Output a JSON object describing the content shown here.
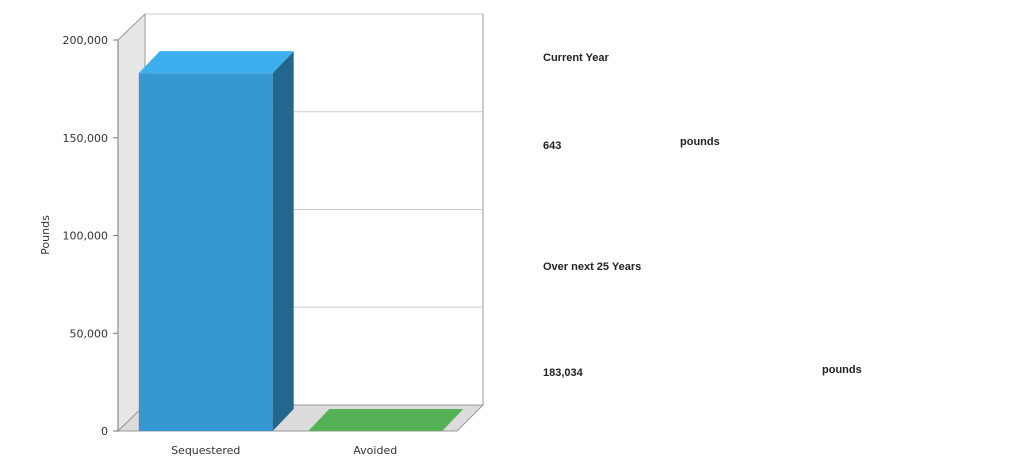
{
  "chart_data": {
    "type": "bar3d",
    "ylabel": "Pounds",
    "categories": [
      "Sequestered",
      "Avoided"
    ],
    "values": [
      183034,
      0
    ],
    "colors": [
      "#3598d0",
      "#4a9a4a"
    ],
    "ylim": [
      0,
      200000
    ],
    "yticks": [
      0,
      {
        "value": 50000,
        "label": "50,000"
      },
      {
        "value": 100000,
        "label": "100,000"
      },
      {
        "value": 150000,
        "label": "150,000"
      },
      {
        "value": 200000,
        "label": "200,000"
      }
    ],
    "grid": true
  },
  "summary": [
    {
      "heading": "Current Year",
      "value": "643",
      "unit": "pounds"
    },
    {
      "heading": "Over next 25 Years",
      "value": "183,034",
      "unit": "pounds"
    }
  ]
}
